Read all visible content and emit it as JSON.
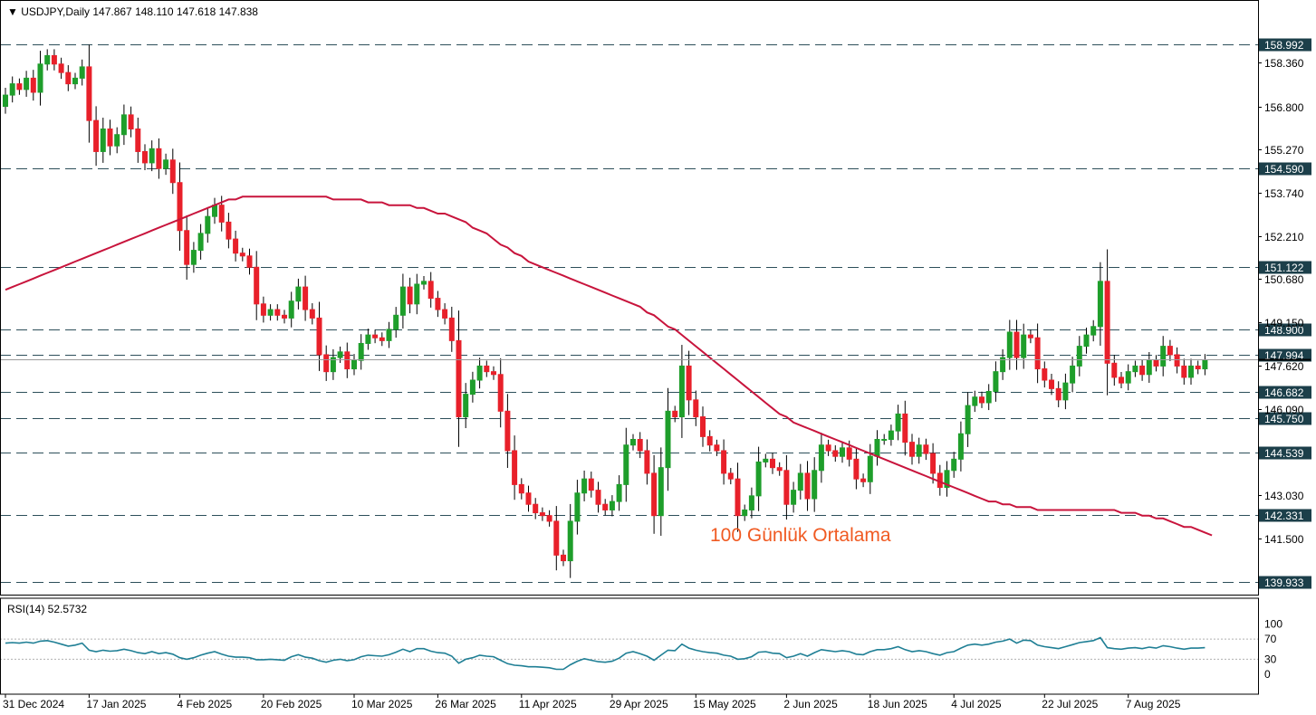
{
  "header": {
    "symbol_line": "USDJPY,Daily  147.867 148.110 147.618 147.838"
  },
  "rsi_panel": {
    "label": "RSI(14) 52.5732",
    "ticks": [
      "100",
      "70",
      "30",
      "0"
    ],
    "levels": [
      70,
      30
    ]
  },
  "annotation": {
    "text": "100 Günlük Ortalama"
  },
  "colors": {
    "bull": "#1e9e2b",
    "bear": "#e8202a",
    "ma": "#c8143c",
    "rsi": "#1f7f95",
    "hline": "#2d4f5a",
    "price_box": "#000000"
  },
  "chart_data": {
    "type": "candlestick",
    "title": "USDJPY,Daily",
    "ohlc_readout": [
      147.867,
      148.11,
      147.618,
      147.838
    ],
    "ylim": [
      139.5,
      159.8
    ],
    "y_ticks": [
      158.36,
      156.8,
      155.27,
      153.74,
      152.21,
      150.68,
      149.15,
      147.62,
      146.09,
      143.03,
      141.5
    ],
    "y_tick_labels": [
      "158.360",
      "156.800",
      "155.270",
      "153.740",
      "152.210",
      "150.680",
      "149.150",
      "147.620",
      "146.090",
      "143.030",
      "141.500"
    ],
    "horizontal_levels": [
      158.992,
      154.59,
      151.122,
      148.9,
      147.994,
      146.682,
      145.75,
      144.539,
      142.331,
      139.933
    ],
    "horizontal_level_labels": [
      "158.992",
      "154.590",
      "151.122",
      "148.900",
      "147.994",
      "146.682",
      "145.750",
      "144.539",
      "142.331",
      "139.933"
    ],
    "current_price": 147.838,
    "x_labels": [
      "31 Dec 2024",
      "17 Jan 2025",
      "4 Feb 2025",
      "20 Feb 2025",
      "10 Mar 2025",
      "26 Mar 2025",
      "11 Apr 2025",
      "29 Apr 2025",
      "15 May 2025",
      "2 Jun 2025",
      "18 Jun 2025",
      "4 Jul 2025",
      "22 Jul 2025",
      "7 Aug 2025"
    ],
    "x_label_index": [
      0,
      12,
      25,
      37,
      50,
      62,
      74,
      87,
      99,
      112,
      124,
      136,
      149,
      161
    ],
    "close": [
      157.2,
      157.6,
      157.4,
      157.8,
      157.3,
      158.3,
      158.6,
      158.3,
      158.0,
      157.6,
      157.8,
      158.2,
      156.3,
      155.2,
      156.0,
      155.4,
      155.8,
      156.5,
      156.0,
      155.2,
      154.8,
      155.3,
      154.6,
      154.9,
      154.1,
      152.4,
      151.2,
      151.7,
      152.3,
      152.9,
      153.3,
      152.7,
      152.1,
      151.6,
      151.5,
      151.1,
      149.8,
      149.4,
      149.6,
      149.4,
      149.3,
      149.9,
      150.4,
      149.6,
      149.3,
      148.0,
      147.4,
      147.9,
      148.1,
      147.5,
      147.8,
      148.4,
      148.7,
      148.6,
      148.5,
      148.9,
      149.4,
      150.4,
      149.8,
      150.5,
      150.6,
      150.0,
      149.6,
      149.3,
      148.5,
      145.8,
      146.6,
      147.1,
      147.6,
      147.4,
      147.3,
      146.0,
      144.6,
      143.4,
      143.1,
      142.7,
      142.4,
      142.3,
      142.1,
      140.9,
      140.7,
      142.1,
      143.1,
      143.6,
      143.2,
      142.7,
      142.5,
      142.8,
      143.4,
      144.8,
      145.0,
      144.6,
      143.8,
      142.3,
      144.0,
      146.0,
      145.8,
      147.6,
      146.4,
      145.8,
      145.1,
      144.8,
      144.6,
      143.8,
      143.6,
      142.3,
      142.5,
      143.0,
      144.2,
      144.3,
      144.0,
      143.9,
      142.7,
      143.2,
      143.8,
      142.9,
      143.9,
      144.8,
      144.6,
      144.4,
      144.7,
      144.3,
      143.6,
      143.5,
      144.4,
      145.0,
      145.0,
      145.3,
      145.9,
      144.9,
      144.4,
      144.8,
      144.5,
      143.8,
      143.3,
      143.9,
      144.3,
      145.2,
      146.2,
      146.5,
      146.3,
      146.7,
      147.4,
      147.9,
      148.8,
      147.9,
      148.7,
      148.6,
      147.5,
      147.1,
      146.8,
      146.4,
      147.0,
      147.6,
      148.3,
      148.7,
      149.0,
      150.6,
      147.7,
      147.2,
      147.0,
      147.4,
      147.6,
      147.3,
      147.8,
      147.6,
      148.3,
      148.0,
      147.6,
      147.2,
      147.6,
      147.5,
      147.8
    ],
    "ma100": [
      150.3,
      150.4,
      150.5,
      150.6,
      150.7,
      150.8,
      150.9,
      151.0,
      151.1,
      151.2,
      151.3,
      151.4,
      151.5,
      151.6,
      151.7,
      151.8,
      151.9,
      152.0,
      152.1,
      152.2,
      152.3,
      152.4,
      152.5,
      152.6,
      152.7,
      152.8,
      152.9,
      153.0,
      153.1,
      153.2,
      153.3,
      153.4,
      153.5,
      153.5,
      153.6,
      153.6,
      153.6,
      153.6,
      153.6,
      153.6,
      153.6,
      153.6,
      153.6,
      153.6,
      153.6,
      153.6,
      153.6,
      153.5,
      153.5,
      153.5,
      153.5,
      153.5,
      153.4,
      153.4,
      153.4,
      153.3,
      153.3,
      153.3,
      153.3,
      153.2,
      153.2,
      153.1,
      153.0,
      153.0,
      152.9,
      152.8,
      152.7,
      152.5,
      152.4,
      152.3,
      152.1,
      151.9,
      151.8,
      151.6,
      151.5,
      151.3,
      151.2,
      151.1,
      151.0,
      150.9,
      150.8,
      150.7,
      150.6,
      150.5,
      150.4,
      150.3,
      150.2,
      150.1,
      150.0,
      149.9,
      149.8,
      149.7,
      149.5,
      149.4,
      149.2,
      149.0,
      148.9,
      148.7,
      148.5,
      148.3,
      148.1,
      147.9,
      147.7,
      147.5,
      147.3,
      147.1,
      146.9,
      146.7,
      146.5,
      146.3,
      146.1,
      145.9,
      145.8,
      145.6,
      145.5,
      145.4,
      145.3,
      145.2,
      145.1,
      145.0,
      144.9,
      144.8,
      144.7,
      144.6,
      144.5,
      144.4,
      144.3,
      144.2,
      144.1,
      144.0,
      143.9,
      143.8,
      143.7,
      143.6,
      143.5,
      143.4,
      143.3,
      143.2,
      143.1,
      143.0,
      142.9,
      142.8,
      142.8,
      142.7,
      142.7,
      142.6,
      142.6,
      142.6,
      142.5,
      142.5,
      142.5,
      142.5,
      142.5,
      142.5,
      142.5,
      142.5,
      142.5,
      142.5,
      142.5,
      142.5,
      142.4,
      142.4,
      142.4,
      142.3,
      142.3,
      142.2,
      142.2,
      142.1,
      142.0,
      141.9,
      141.9,
      141.8,
      141.7,
      141.6
    ],
    "rsi": [
      62,
      63,
      62,
      64,
      62,
      66,
      67,
      64,
      60,
      56,
      58,
      62,
      48,
      45,
      48,
      46,
      47,
      50,
      47,
      43,
      41,
      45,
      41,
      43,
      40,
      33,
      30,
      33,
      38,
      42,
      45,
      40,
      36,
      34,
      34,
      33,
      29,
      29,
      30,
      29,
      28,
      35,
      39,
      34,
      32,
      27,
      24,
      28,
      30,
      27,
      29,
      35,
      38,
      37,
      36,
      39,
      44,
      50,
      45,
      51,
      51,
      46,
      43,
      42,
      36,
      22,
      30,
      33,
      38,
      36,
      35,
      28,
      21,
      18,
      17,
      15,
      15,
      14,
      13,
      10,
      10,
      19,
      26,
      31,
      28,
      25,
      24,
      26,
      32,
      42,
      45,
      41,
      36,
      28,
      38,
      48,
      47,
      60,
      52,
      48,
      45,
      43,
      42,
      38,
      36,
      30,
      31,
      35,
      44,
      45,
      42,
      41,
      33,
      36,
      41,
      36,
      43,
      49,
      47,
      45,
      47,
      45,
      40,
      39,
      45,
      49,
      49,
      51,
      55,
      49,
      45,
      47,
      45,
      41,
      38,
      43,
      45,
      52,
      58,
      60,
      58,
      60,
      64,
      66,
      70,
      62,
      68,
      67,
      58,
      55,
      53,
      51,
      55,
      59,
      63,
      65,
      67,
      73,
      53,
      51,
      50,
      52,
      53,
      51,
      54,
      52,
      57,
      55,
      52,
      50,
      52,
      52,
      53
    ]
  }
}
